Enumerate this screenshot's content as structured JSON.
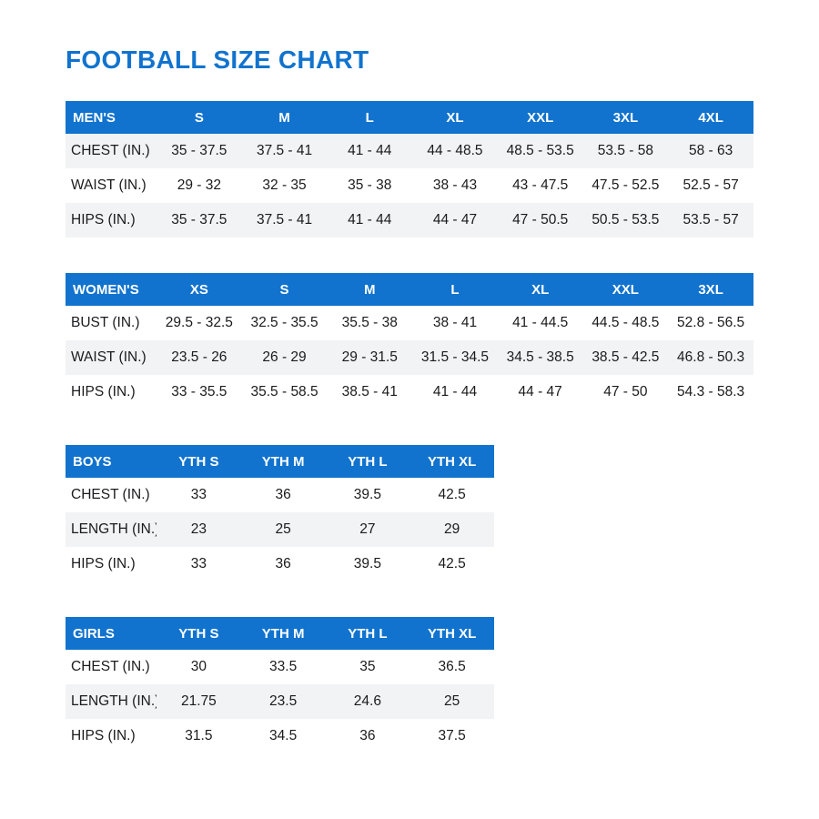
{
  "page": {
    "title": "FOOTBALL SIZE CHART"
  },
  "colors": {
    "header_bg": "#1173ce",
    "header_text": "#ffffff",
    "stripe_bg": "#f2f3f4",
    "title_text": "#1173ce",
    "body_text": "#1b1b1d"
  },
  "tables": [
    {
      "id": "mens",
      "first_row_shaded": true,
      "header": [
        "MEN'S",
        "S",
        "M",
        "L",
        "XL",
        "XXL",
        "3XL",
        "4XL"
      ],
      "rows": [
        {
          "label": "CHEST (IN.)",
          "values": [
            "35 - 37.5",
            "37.5 - 41",
            "41 - 44",
            "44 - 48.5",
            "48.5 - 53.5",
            "53.5 - 58",
            "58 - 63"
          ]
        },
        {
          "label": "WAIST (IN.)",
          "values": [
            "29 - 32",
            "32 - 35",
            "35 - 38",
            "38 - 43",
            "43 - 47.5",
            "47.5 - 52.5",
            "52.5 - 57"
          ]
        },
        {
          "label": "HIPS (IN.)",
          "values": [
            "35 - 37.5",
            "37.5 - 41",
            "41 - 44",
            "44 - 47",
            "47 - 50.5",
            "50.5 - 53.5",
            "53.5 - 57"
          ]
        }
      ]
    },
    {
      "id": "womens",
      "first_row_shaded": false,
      "header": [
        "WOMEN'S",
        "XS",
        "S",
        "M",
        "L",
        "XL",
        "XXL",
        "3XL"
      ],
      "rows": [
        {
          "label": "BUST (IN.)",
          "values": [
            "29.5 - 32.5",
            "32.5 - 35.5",
            "35.5 - 38",
            "38 - 41",
            "41 - 44.5",
            "44.5 - 48.5",
            "52.8 - 56.5"
          ]
        },
        {
          "label": "WAIST (IN.)",
          "values": [
            "23.5 - 26",
            "26 - 29",
            "29 - 31.5",
            "31.5 - 34.5",
            "34.5 - 38.5",
            "38.5 - 42.5",
            "46.8 - 50.3"
          ]
        },
        {
          "label": "HIPS (IN.)",
          "values": [
            "33 - 35.5",
            "35.5 - 58.5",
            "38.5 - 41",
            "41 - 44",
            "44 - 47",
            "47 - 50",
            "54.3 - 58.3"
          ]
        }
      ]
    },
    {
      "id": "boys",
      "first_row_shaded": false,
      "header": [
        "BOYS",
        "YTH S",
        "YTH M",
        "YTH L",
        "YTH XL"
      ],
      "rows": [
        {
          "label": "CHEST (IN.)",
          "values": [
            "33",
            "36",
            "39.5",
            "42.5"
          ]
        },
        {
          "label": "LENGTH (IN.)",
          "values": [
            "23",
            "25",
            "27",
            "29"
          ]
        },
        {
          "label": "HIPS (IN.)",
          "values": [
            "33",
            "36",
            "39.5",
            "42.5"
          ]
        }
      ]
    },
    {
      "id": "girls",
      "first_row_shaded": false,
      "header": [
        "GIRLS",
        "YTH S",
        "YTH M",
        "YTH L",
        "YTH XL"
      ],
      "rows": [
        {
          "label": "CHEST (IN.)",
          "values": [
            "30",
            "33.5",
            "35",
            "36.5"
          ]
        },
        {
          "label": "LENGTH (IN.)",
          "values": [
            "21.75",
            "23.5",
            "24.6",
            "25"
          ]
        },
        {
          "label": "HIPS (IN.)",
          "values": [
            "31.5",
            "34.5",
            "36",
            "37.5"
          ]
        }
      ]
    }
  ]
}
